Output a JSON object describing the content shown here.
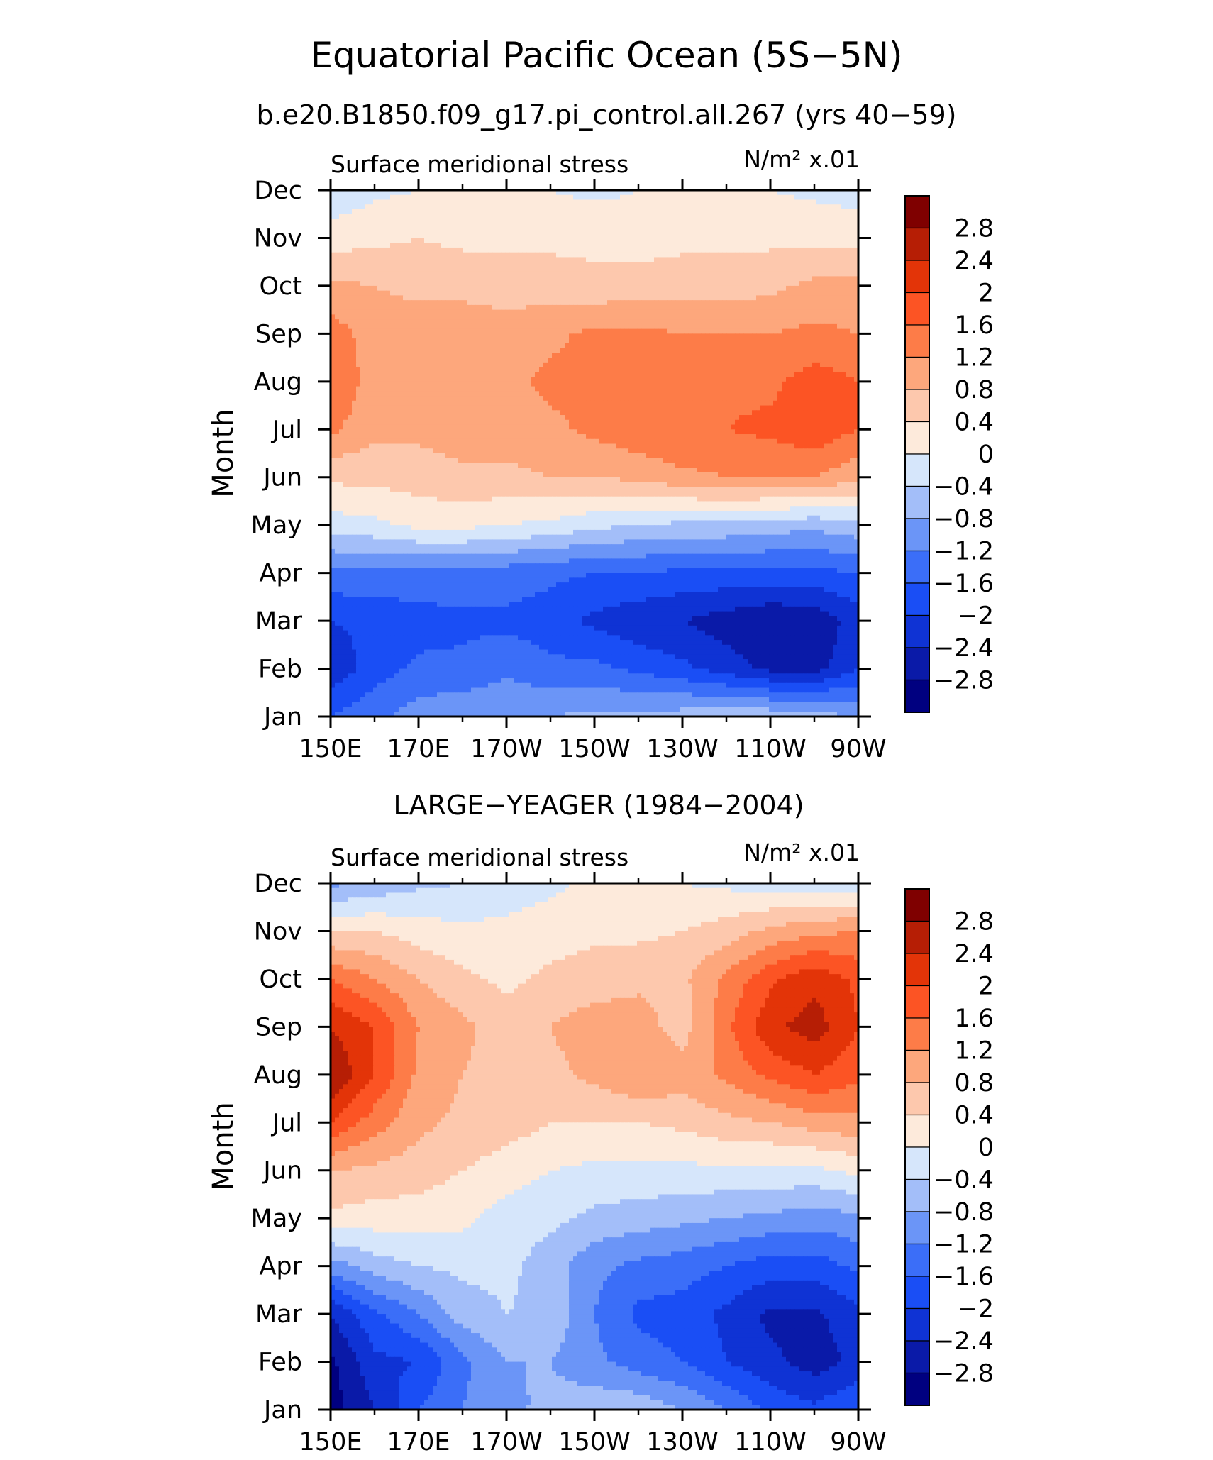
{
  "figure": {
    "title": "Equatorial Pacific Ocean (5S−5N)",
    "subtitle": "b.e20.B1850.f09_g17.pi_control.all.267 (yrs 40−59)"
  },
  "chart_data": [
    {
      "type": "heatmap",
      "panel_title": "",
      "left_label": "Surface meridional stress",
      "right_label_unit": "N/m² x.01",
      "ylabel": "Month",
      "x_ticks": [
        "150E",
        "170E",
        "170W",
        "150W",
        "130W",
        "110W",
        "90W"
      ],
      "x_lon": [
        150,
        170,
        190,
        210,
        230,
        250,
        270
      ],
      "xlim": [
        150,
        270
      ],
      "y_ticks": [
        "Jan",
        "Feb",
        "Mar",
        "Apr",
        "May",
        "Jun",
        "Jul",
        "Aug",
        "Sep",
        "Oct",
        "Nov",
        "Dec"
      ],
      "levels": [
        -2.8,
        -2.4,
        -2,
        -1.6,
        -1.2,
        -0.8,
        -0.4,
        0,
        0.4,
        0.8,
        1.2,
        1.6,
        2,
        2.4,
        2.8
      ],
      "level_labels": [
        "−2.8",
        "−2.4",
        "−2",
        "−1.6",
        "−1.2",
        "−0.8",
        "−0.4",
        "0",
        "0.4",
        "0.8",
        "1.2",
        "1.6",
        "2",
        "2.4",
        "2.8"
      ],
      "grid_lon": [
        150,
        160,
        170,
        180,
        190,
        200,
        210,
        220,
        230,
        240,
        250,
        260,
        270
      ],
      "values": [
        [
          -1.6,
          -1.3,
          -1.0,
          -0.9,
          -0.8,
          -0.8,
          -0.7,
          -0.7,
          -0.6,
          -0.5,
          -0.5,
          -0.5,
          -0.9
        ],
        [
          -2.3,
          -1.8,
          -1.5,
          -1.5,
          -1.3,
          -1.5,
          -1.5,
          -1.7,
          -1.9,
          -2.2,
          -2.5,
          -2.6,
          -2.0
        ],
        [
          -2.0,
          -1.9,
          -1.8,
          -1.7,
          -1.7,
          -1.8,
          -2.1,
          -2.3,
          -2.4,
          -2.6,
          -2.8,
          -2.7,
          -2.2
        ],
        [
          -1.3,
          -1.3,
          -1.3,
          -1.3,
          -1.4,
          -1.5,
          -1.6,
          -1.6,
          -1.7,
          -1.7,
          -1.7,
          -1.7,
          -1.6
        ],
        [
          -0.2,
          -0.1,
          0.1,
          0.1,
          0.0,
          -0.1,
          -0.3,
          -0.4,
          -0.5,
          -0.5,
          -0.6,
          -0.7,
          -0.5
        ],
        [
          0.5,
          0.5,
          0.6,
          0.7,
          0.7,
          0.8,
          0.8,
          0.9,
          1.1,
          1.2,
          1.2,
          1.2,
          0.9
        ],
        [
          1.3,
          0.9,
          0.9,
          1.0,
          1.0,
          1.1,
          1.3,
          1.5,
          1.6,
          1.6,
          1.7,
          1.9,
          1.6
        ],
        [
          1.6,
          1.0,
          1.0,
          1.0,
          1.1,
          1.3,
          1.4,
          1.5,
          1.5,
          1.5,
          1.5,
          1.8,
          1.6
        ],
        [
          1.4,
          1.0,
          1.0,
          1.0,
          1.0,
          1.1,
          1.3,
          1.3,
          1.2,
          1.2,
          1.2,
          1.3,
          1.2
        ],
        [
          0.9,
          0.8,
          0.7,
          0.7,
          0.6,
          0.6,
          0.5,
          0.6,
          0.6,
          0.6,
          0.7,
          0.9,
          0.9
        ],
        [
          0.2,
          0.3,
          0.4,
          0.3,
          0.3,
          0.3,
          0.3,
          0.2,
          0.3,
          0.3,
          0.3,
          0.3,
          0.3
        ],
        [
          -0.3,
          -0.1,
          0.0,
          0.1,
          0.1,
          0.0,
          -0.1,
          0.0,
          0.1,
          0.1,
          0.0,
          -0.1,
          -0.2
        ]
      ]
    },
    {
      "type": "heatmap",
      "panel_title": "LARGE−YEAGER (1984−2004)",
      "left_label": "Surface meridional stress",
      "right_label_unit": "N/m² x.01",
      "ylabel": "Month",
      "x_ticks": [
        "150E",
        "170E",
        "170W",
        "150W",
        "130W",
        "110W",
        "90W"
      ],
      "x_lon": [
        150,
        170,
        190,
        210,
        230,
        250,
        270
      ],
      "xlim": [
        150,
        270
      ],
      "y_ticks": [
        "Jan",
        "Feb",
        "Mar",
        "Apr",
        "May",
        "Jun",
        "Jul",
        "Aug",
        "Sep",
        "Oct",
        "Nov",
        "Dec"
      ],
      "levels": [
        -2.8,
        -2.4,
        -2,
        -1.6,
        -1.2,
        -0.8,
        -0.4,
        0,
        0.4,
        0.8,
        1.2,
        1.6,
        2,
        2.4,
        2.8
      ],
      "level_labels": [
        "−2.8",
        "−2.4",
        "−2",
        "−1.6",
        "−1.2",
        "−0.8",
        "−0.4",
        "0",
        "0.4",
        "0.8",
        "1.2",
        "1.6",
        "2",
        "2.4",
        "2.8"
      ],
      "grid_lon": [
        150,
        160,
        170,
        180,
        190,
        200,
        210,
        220,
        230,
        240,
        250,
        260,
        270
      ],
      "values": [
        [
          -3.0,
          -2.4,
          -1.6,
          -1.2,
          -0.9,
          -0.7,
          -0.5,
          -0.5,
          -0.8,
          -1.2,
          -1.7,
          -1.9,
          -1.6
        ],
        [
          -2.9,
          -2.1,
          -2.0,
          -1.3,
          -0.8,
          -0.8,
          -1.1,
          -1.4,
          -1.6,
          -2.0,
          -2.3,
          -2.6,
          -2.3
        ],
        [
          -2.4,
          -1.7,
          -1.2,
          -0.6,
          -0.4,
          -0.5,
          -1.2,
          -1.7,
          -1.8,
          -2.1,
          -2.5,
          -2.5,
          -2.1
        ],
        [
          -1.0,
          -0.6,
          -0.4,
          -0.3,
          -0.3,
          -0.6,
          -1.1,
          -1.3,
          -1.4,
          -1.6,
          -1.8,
          -1.8,
          -1.5
        ],
        [
          0.3,
          0.2,
          0.2,
          0.1,
          -0.2,
          -0.3,
          -0.5,
          -0.6,
          -0.7,
          -0.8,
          -0.9,
          -1.0,
          -0.9
        ],
        [
          0.8,
          0.7,
          0.6,
          0.4,
          0.2,
          0.0,
          -0.1,
          -0.1,
          -0.1,
          -0.1,
          -0.1,
          -0.1,
          0.1
        ],
        [
          2.0,
          1.4,
          0.9,
          0.7,
          0.6,
          0.4,
          0.4,
          0.4,
          0.5,
          0.7,
          0.8,
          1.0,
          1.1
        ],
        [
          2.8,
          2.0,
          1.1,
          0.8,
          0.6,
          0.7,
          0.9,
          1.2,
          1.0,
          1.3,
          1.7,
          2.0,
          1.7
        ],
        [
          2.4,
          2.0,
          1.2,
          0.9,
          0.6,
          0.8,
          1.0,
          1.0,
          0.6,
          1.5,
          2.3,
          2.6,
          2.0
        ],
        [
          1.6,
          1.2,
          0.8,
          0.5,
          0.3,
          0.5,
          0.6,
          0.7,
          0.7,
          1.3,
          1.9,
          2.3,
          1.9
        ],
        [
          0.4,
          0.4,
          0.2,
          0.1,
          0.1,
          0.2,
          0.3,
          0.3,
          0.4,
          0.6,
          0.9,
          1.1,
          1.2
        ],
        [
          -0.9,
          -0.7,
          -0.5,
          -0.4,
          -0.2,
          -0.1,
          0.1,
          0.1,
          0.0,
          -0.1,
          -0.2,
          -0.2,
          -0.3
        ]
      ]
    }
  ],
  "colorbar": {
    "colors": [
      "#000080",
      "#0a1aa8",
      "#0f33d4",
      "#1a4ef5",
      "#3b6ef8",
      "#6b95f7",
      "#a3bef9",
      "#d6e6fb",
      "#fdeadb",
      "#fdc8ad",
      "#fda77c",
      "#fd7c48",
      "#fc5424",
      "#e33408",
      "#b61e05",
      "#7f0000"
    ]
  }
}
